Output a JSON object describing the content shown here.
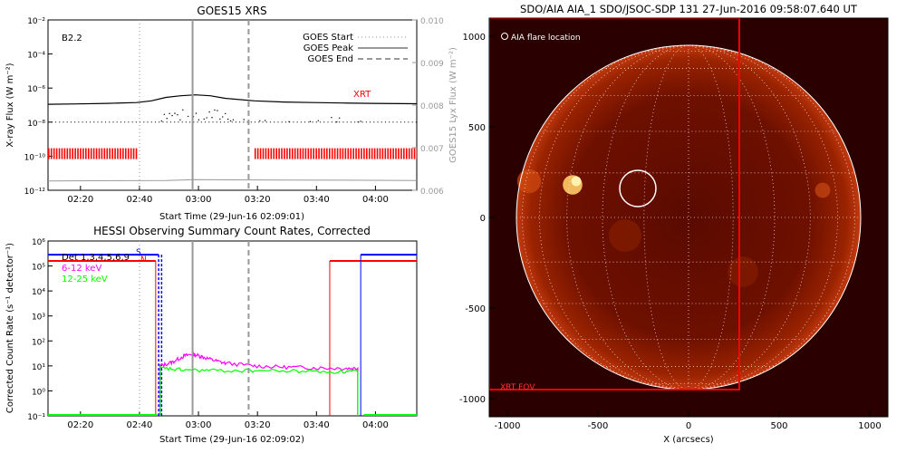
{
  "colors": {
    "goes_flux": "#000000",
    "goes_lyx": "#999999",
    "xrt_bar": "#ff0000",
    "hessi_6_12": "#ff00ff",
    "hessi_12_25": "#00ff00",
    "det_blue": "#0000ff",
    "det_red": "#ff0000",
    "sun_bg": "#2a0000",
    "sun_disk": "#7a1200"
  },
  "chart_data": [
    {
      "id": "goes",
      "type": "line",
      "title": "GOES15 XRS",
      "xlabel": "Start Time (29-Jun-16 02:09:01)",
      "ylabel": "X-ray Flux (W m⁻²)",
      "ylabel_right": "GOES15 Lyx Flux (W m⁻²)",
      "x_unit": "minutes since 02:09:01",
      "xlim": [
        0,
        125
      ],
      "x_ticks": [
        {
          "v": 11,
          "label": "02:20"
        },
        {
          "v": 31,
          "label": "02:40"
        },
        {
          "v": 51,
          "label": "03:00"
        },
        {
          "v": 71,
          "label": "03:20"
        },
        {
          "v": 91,
          "label": "03:40"
        },
        {
          "v": 111,
          "label": "04:00"
        }
      ],
      "ylim_log": [
        -12,
        -2
      ],
      "y_ticks": [
        {
          "e": -12,
          "label": "10⁻¹²"
        },
        {
          "e": -10,
          "label": "10⁻¹⁰"
        },
        {
          "e": -8,
          "label": "10⁻⁸"
        },
        {
          "e": -6,
          "label": "10⁻⁶"
        },
        {
          "e": -4,
          "label": "10⁻⁴"
        },
        {
          "e": -2,
          "label": "10⁻²"
        }
      ],
      "ylim_right": [
        0.006,
        0.01
      ],
      "y_ticks_right": [
        "0.006",
        "0.007",
        "0.008",
        "0.009",
        "0.010"
      ],
      "class_label": "B2.2",
      "xrt_label": "XRT",
      "legend": [
        {
          "name": "GOES Start",
          "style": "dotted"
        },
        {
          "name": "GOES Peak",
          "style": "solid"
        },
        {
          "name": "GOES End",
          "style": "dashed"
        }
      ],
      "goes_start": 31,
      "goes_peak": 49,
      "goes_end": 68,
      "long_flux": [
        [
          0,
          -6.95
        ],
        [
          10,
          -6.93
        ],
        [
          20,
          -6.9
        ],
        [
          30,
          -6.85
        ],
        [
          35,
          -6.75
        ],
        [
          40,
          -6.55
        ],
        [
          45,
          -6.45
        ],
        [
          50,
          -6.4
        ],
        [
          55,
          -6.45
        ],
        [
          60,
          -6.6
        ],
        [
          70,
          -6.75
        ],
        [
          80,
          -6.82
        ],
        [
          90,
          -6.85
        ],
        [
          100,
          -6.88
        ],
        [
          110,
          -6.9
        ],
        [
          125,
          -6.92
        ]
      ],
      "short_flux_floor": -8.0,
      "lyx_flux": [
        [
          0,
          0.00622
        ],
        [
          40,
          0.00623
        ],
        [
          50,
          0.00625
        ],
        [
          80,
          0.00624
        ],
        [
          125,
          0.00623
        ]
      ],
      "xrt_segments": [
        [
          0,
          30
        ],
        [
          70,
          125
        ]
      ]
    },
    {
      "id": "hessi",
      "type": "line",
      "title": "HESSI Observing Summary Count Rates, Corrected",
      "xlabel": "Start Time (29-Jun-16 02:09:02)",
      "ylabel": "Corrected Count Rate (s⁻¹ detector⁻¹)",
      "x_unit": "minutes since 02:09:02",
      "xlim": [
        0,
        125
      ],
      "x_ticks": [
        {
          "v": 11,
          "label": "02:20"
        },
        {
          "v": 31,
          "label": "02:40"
        },
        {
          "v": 51,
          "label": "03:00"
        },
        {
          "v": 71,
          "label": "03:20"
        },
        {
          "v": 91,
          "label": "03:40"
        },
        {
          "v": 111,
          "label": "04:00"
        }
      ],
      "ylim_log": [
        -1,
        6
      ],
      "y_ticks": [
        {
          "e": -1,
          "label": "10⁻¹"
        },
        {
          "e": 0,
          "label": "10⁰"
        },
        {
          "e": 1,
          "label": "10¹"
        },
        {
          "e": 2,
          "label": "10²"
        },
        {
          "e": 3,
          "label": "10³"
        },
        {
          "e": 4,
          "label": "10⁴"
        },
        {
          "e": 5,
          "label": "10⁵"
        },
        {
          "e": 6,
          "label": "10⁶"
        }
      ],
      "legend": [
        {
          "name": "Det 1,3,4,5,6,9",
          "color": "#000000"
        },
        {
          "name": "6-12 keV",
          "color": "#ff00ff"
        },
        {
          "name": "12-25 keV",
          "color": "#00ff00"
        }
      ],
      "flag_labels": [
        "S",
        "N"
      ],
      "goes_start": 31,
      "goes_peak": 49,
      "goes_end": 68,
      "series": [
        {
          "name": "6-12 keV",
          "values": [
            [
              38,
              10
            ],
            [
              42,
              14
            ],
            [
              46,
              25
            ],
            [
              49,
              30
            ],
            [
              52,
              24
            ],
            [
              56,
              17
            ],
            [
              60,
              13
            ],
            [
              70,
              10
            ],
            [
              80,
              9
            ],
            [
              90,
              8.5
            ],
            [
              100,
              8
            ],
            [
              105,
              8
            ]
          ]
        },
        {
          "name": "12-25 keV",
          "values": [
            [
              38,
              8
            ],
            [
              45,
              7
            ],
            [
              55,
              6.5
            ],
            [
              70,
              6.5
            ],
            [
              85,
              6.2
            ],
            [
              100,
              5.8
            ],
            [
              105,
              6
            ]
          ]
        }
      ]
    },
    {
      "id": "aia",
      "type": "scatter",
      "title": "SDO/AIA AIA_1 SDO/JSOC-SDP 131 27-Jun-2016 09:58:07.640 UT",
      "xlabel": "X (arcsecs)",
      "ylabel": "",
      "xlim": [
        -1100,
        1100
      ],
      "ylim": [
        -1100,
        1100
      ],
      "x_ticks": [
        "-1000",
        "-500",
        "0",
        "500",
        "1000"
      ],
      "y_ticks": [
        "1000",
        "500",
        "0",
        "-500",
        "-1000"
      ],
      "legend_label": "AIA flare location",
      "xrt_fov_label": "XRT FOV",
      "sun_radius": 950,
      "flare": {
        "x": -280,
        "y": 160,
        "r": 100
      },
      "xrt_fov": {
        "x0": -1100,
        "x1": 280,
        "y0": -950,
        "y1": 1100
      }
    }
  ]
}
